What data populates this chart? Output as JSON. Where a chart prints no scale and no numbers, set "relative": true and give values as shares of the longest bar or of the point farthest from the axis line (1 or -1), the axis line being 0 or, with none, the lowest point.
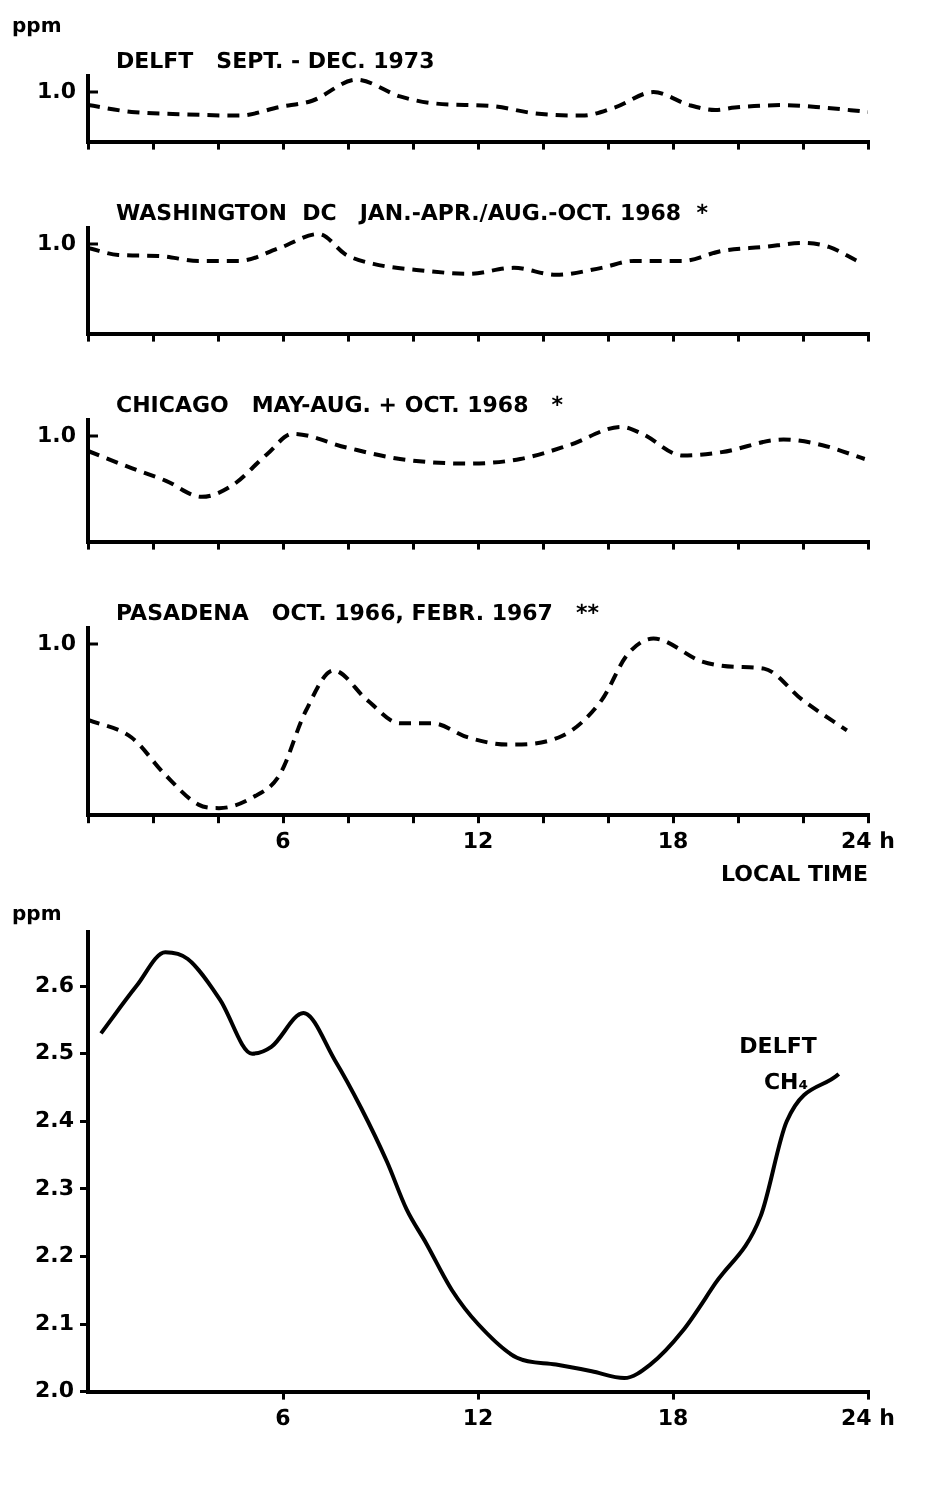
{
  "chart_data": [
    {
      "type": "line",
      "title": "DELFT   SEPT. - DEC. 1973",
      "ylabel": "ppm",
      "relative": true,
      "line_style": "dashed",
      "tick_labels": false,
      "xlim": [
        0,
        24
      ],
      "xticks": [
        {
          "value": 0,
          "label": null
        },
        {
          "value": 2,
          "label": null
        },
        {
          "value": 4,
          "label": null
        },
        {
          "value": 6,
          "label": null
        },
        {
          "value": 8,
          "label": null
        },
        {
          "value": 10,
          "label": null
        },
        {
          "value": 12,
          "label": null
        },
        {
          "value": 14,
          "label": null
        },
        {
          "value": 16,
          "label": null
        },
        {
          "value": 18,
          "label": null
        },
        {
          "value": 20,
          "label": null
        },
        {
          "value": 22,
          "label": null
        },
        {
          "value": 24,
          "label": null
        }
      ],
      "annotations": [
        "1.0"
      ],
      "series": [
        {
          "color": "#000000",
          "x": [
            0,
            1.34,
            3.0,
            4.65,
            5.9,
            6.9,
            8.26,
            9.6,
            10.6,
            12.5,
            13.7,
            15.2,
            16.2,
            17.4,
            18.5,
            19.3,
            19.9,
            21.4,
            22.4,
            24
          ],
          "values": [
            0.59,
            0.48,
            0.44,
            0.42,
            0.56,
            0.66,
            1,
            0.73,
            0.62,
            0.57,
            0.46,
            0.42,
            0.55,
            0.8,
            0.59,
            0.51,
            0.55,
            0.59,
            0.56,
            0.48
          ]
        }
      ]
    },
    {
      "type": "line",
      "title": "WASHINGTON  DC   JAN.-APR./AUG.-OCT. 1968  *",
      "relative": true,
      "line_style": "dashed",
      "tick_labels": false,
      "xlim": [
        0,
        24
      ],
      "xticks": [
        {
          "value": 0,
          "label": null
        },
        {
          "value": 2,
          "label": null
        },
        {
          "value": 4,
          "label": null
        },
        {
          "value": 6,
          "label": null
        },
        {
          "value": 8,
          "label": null
        },
        {
          "value": 10,
          "label": null
        },
        {
          "value": 12,
          "label": null
        },
        {
          "value": 14,
          "label": null
        },
        {
          "value": 16,
          "label": null
        },
        {
          "value": 18,
          "label": null
        },
        {
          "value": 20,
          "label": null
        },
        {
          "value": 22,
          "label": null
        },
        {
          "value": 24,
          "label": null
        }
      ],
      "annotations": [
        "1.0"
      ],
      "series": [
        {
          "color": "#000000",
          "x": [
            0,
            0.93,
            2.17,
            3.4,
            4.65,
            5.9,
            7.1,
            7.95,
            8.78,
            10.4,
            11.7,
            13.1,
            14.4,
            15.8,
            16.8,
            18.3,
            19.5,
            20.8,
            22.0,
            22.8,
            23.66
          ],
          "values": [
            0.86,
            0.79,
            0.78,
            0.73,
            0.73,
            0.86,
            1,
            0.79,
            0.7,
            0.63,
            0.6,
            0.66,
            0.59,
            0.66,
            0.73,
            0.73,
            0.83,
            0.87,
            0.91,
            0.87,
            0.73
          ]
        }
      ]
    },
    {
      "type": "line",
      "title": "CHICAGO   MAY-AUG. + OCT. 1968   *",
      "relative": true,
      "line_style": "dashed",
      "tick_labels": false,
      "xlim": [
        0,
        24
      ],
      "xticks": [
        {
          "value": 0,
          "label": null
        },
        {
          "value": 2,
          "label": null
        },
        {
          "value": 4,
          "label": null
        },
        {
          "value": 6,
          "label": null
        },
        {
          "value": 8,
          "label": null
        },
        {
          "value": 10,
          "label": null
        },
        {
          "value": 12,
          "label": null
        },
        {
          "value": 14,
          "label": null
        },
        {
          "value": 16,
          "label": null
        },
        {
          "value": 18,
          "label": null
        },
        {
          "value": 20,
          "label": null
        },
        {
          "value": 22,
          "label": null
        },
        {
          "value": 24,
          "label": null
        }
      ],
      "annotations": [
        "1.0"
      ],
      "series": [
        {
          "color": "#000000",
          "x": [
            0,
            1.34,
            2.4,
            3.5,
            4.44,
            5.5,
            6.3,
            7.95,
            9.6,
            11.7,
            13.3,
            14.8,
            16.4,
            17.05,
            18.3,
            19.5,
            21.4,
            22.6,
            23.9
          ],
          "values": [
            0.79,
            0.64,
            0.53,
            0.39,
            0.49,
            0.76,
            0.94,
            0.82,
            0.72,
            0.68,
            0.72,
            0.84,
            1,
            0.94,
            0.75,
            0.78,
            0.89,
            0.84,
            0.72
          ]
        }
      ]
    },
    {
      "type": "line",
      "title": "PASADENA   OCT. 1966, FEBR. 1967   **",
      "xlabel": "LOCAL TIME",
      "relative": true,
      "line_style": "dashed",
      "tick_labels": "x",
      "xlim": [
        0,
        24
      ],
      "xticks": [
        {
          "value": 0,
          "label": null
        },
        {
          "value": 2,
          "label": null
        },
        {
          "value": 4,
          "label": null
        },
        6,
        {
          "value": 8,
          "label": null
        },
        {
          "value": 10,
          "label": null
        },
        12,
        {
          "value": 14,
          "label": null
        },
        {
          "value": 16,
          "label": null
        },
        18,
        {
          "value": 20,
          "label": null
        },
        {
          "value": 22,
          "label": null
        },
        {
          "value": 24,
          "label": "24 h"
        }
      ],
      "annotations": [
        "1.0"
      ],
      "series": [
        {
          "color": "#000000",
          "x": [
            0,
            1.34,
            2.37,
            3.4,
            4.03,
            5.06,
            5.9,
            6.7,
            7.55,
            8.6,
            9.6,
            10.6,
            11.7,
            12.9,
            14.6,
            15.8,
            16.6,
            17.4,
            18.9,
            19.9,
            20.8,
            22.0,
            23.35
          ],
          "values": [
            0.54,
            0.44,
            0.23,
            0.06,
            0.04,
            0.1,
            0.23,
            0.59,
            0.82,
            0.65,
            0.52,
            0.52,
            0.44,
            0.4,
            0.45,
            0.65,
            0.91,
            1,
            0.87,
            0.84,
            0.83,
            0.65,
            0.48
          ]
        }
      ]
    },
    {
      "type": "line",
      "ylabel": "ppm",
      "line_style": "solid",
      "xlim": [
        0,
        24
      ],
      "xticks": [
        6,
        12,
        18,
        {
          "value": 24,
          "label": "24 h"
        }
      ],
      "ylim": [
        2.0,
        2.68
      ],
      "yticks": [
        {
          "value": 2,
          "label": "2.0"
        },
        2.1,
        2.2,
        2.3,
        2.4,
        2.5,
        2.6
      ],
      "annotations": [
        "DELFT",
        "CH₄"
      ],
      "series": [
        {
          "color": "#000000",
          "x": [
            0.4,
            1.49,
            2.38,
            3.07,
            4.06,
            5.05,
            5.64,
            6.63,
            7.6,
            8.4,
            9.2,
            9.8,
            10.4,
            11.2,
            12.0,
            13.2,
            14.4,
            15.5,
            16.5,
            17.3,
            18.3,
            19.3,
            20.7,
            21.5,
            23.1
          ],
          "values": [
            2.53,
            2.6,
            2.65,
            2.64,
            2.58,
            2.5,
            2.51,
            2.56,
            2.49,
            2.42,
            2.34,
            2.27,
            2.22,
            2.15,
            2.1,
            2.05,
            2.04,
            2.03,
            2.02,
            2.04,
            2.09,
            2.16,
            2.26,
            2.4,
            2.47
          ]
        }
      ]
    }
  ]
}
